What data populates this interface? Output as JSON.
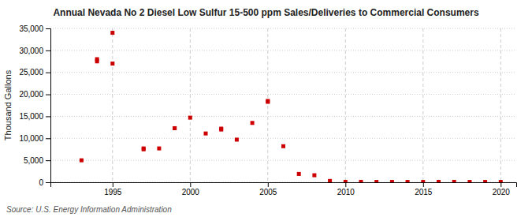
{
  "chart_data": {
    "type": "scatter",
    "title": "Annual Nevada No 2 Diesel Low Sulfur 15-500 ppm Sales/Deliveries to Commercial Consumers",
    "ylabel": "Thousand Gallons",
    "annotations": [
      "Source: U.S. Energy Information Administration"
    ],
    "x": [
      1993,
      1994,
      1994,
      1995,
      1995,
      1997,
      1997,
      1998,
      1999,
      1999,
      2000,
      2001,
      2002,
      2002,
      2003,
      2004,
      2005,
      2005,
      2006,
      2007,
      2008,
      2009,
      2010,
      2011,
      2012,
      2013,
      2014,
      2015,
      2016,
      2017,
      2018,
      2019,
      2020
    ],
    "values": [
      5000,
      28000,
      27500,
      34000,
      27000,
      7700,
      7500,
      7700,
      12300,
      12300,
      14700,
      11100,
      12000,
      12200,
      9700,
      13500,
      18500,
      18300,
      8200,
      1900,
      1600,
      300,
      100,
      100,
      80,
      80,
      80,
      80,
      100,
      100,
      80,
      80,
      80
    ],
    "color": "#cc0000",
    "marker": "square",
    "xlim": [
      1991,
      2021
    ],
    "xticks": [
      1995,
      2000,
      2005,
      2010,
      2015,
      2020
    ],
    "ylim": [
      0,
      35000
    ],
    "yticks": [
      0,
      {
        "value": 5000,
        "label": "5,000"
      },
      {
        "value": 10000,
        "label": "10,000"
      },
      {
        "value": 15000,
        "label": "15,000"
      },
      {
        "value": 20000,
        "label": "20,000"
      },
      {
        "value": 25000,
        "label": "25,000"
      },
      {
        "value": 30000,
        "label": "30,000"
      },
      {
        "value": 35000,
        "label": "35,000"
      }
    ],
    "grid": true
  }
}
